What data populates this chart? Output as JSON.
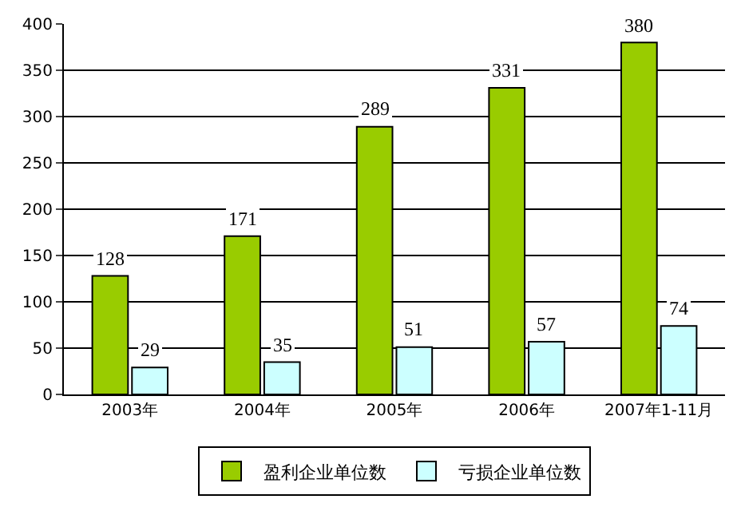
{
  "chart_data": {
    "type": "bar",
    "categories": [
      "2003年",
      "2004年",
      "2005年",
      "2006年",
      "2007年1-11月"
    ],
    "series": [
      {
        "name": "盈利企业单位数",
        "color": "#99cc00",
        "values": [
          128,
          171,
          289,
          331,
          380
        ]
      },
      {
        "name": "亏损企业单位数",
        "color": "#ccffff",
        "values": [
          29,
          35,
          51,
          57,
          74
        ]
      }
    ],
    "ylim": [
      0,
      400
    ],
    "yticks": [
      0,
      50,
      100,
      150,
      200,
      250,
      300,
      350,
      400
    ],
    "grid": "y",
    "legend": "bottom",
    "data_labels": true
  }
}
